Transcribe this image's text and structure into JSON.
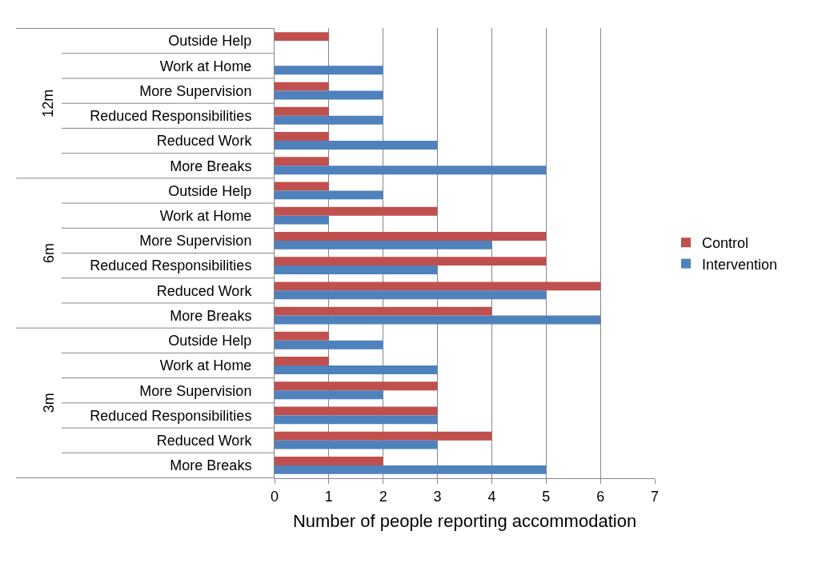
{
  "chart_data": {
    "type": "bar",
    "orientation": "horizontal",
    "xlabel": "Number of people reporting accommodation",
    "categories": [
      "Outside Help",
      "Work at Home",
      "More Supervision",
      "Reduced Responsibilities",
      "Reduced Work",
      "More Breaks",
      "Outside Help",
      "Work at Home",
      "More Supervision",
      "Reduced Responsibilities",
      "Reduced Work",
      "More Breaks",
      "Outside Help",
      "Work at Home",
      "More Supervision",
      "Reduced Responsibilities",
      "Reduced Work",
      "More Breaks"
    ],
    "series": [
      {
        "name": "Control",
        "color": "#c0504d",
        "values": [
          1,
          0,
          1,
          1,
          1,
          1,
          1,
          3,
          5,
          5,
          6,
          4,
          1,
          1,
          3,
          3,
          4,
          2
        ]
      },
      {
        "name": "Intervention",
        "color": "#4f81bd",
        "values": [
          0,
          2,
          2,
          2,
          3,
          5,
          2,
          1,
          4,
          3,
          5,
          6,
          2,
          3,
          2,
          3,
          3,
          5
        ]
      }
    ],
    "annotations": [
      "12m",
      "6m",
      "3m"
    ],
    "xlim": [
      0,
      7
    ],
    "xticks": [
      0,
      1,
      2,
      3,
      4,
      5,
      6,
      7
    ],
    "grid": "x",
    "legend": "right"
  }
}
